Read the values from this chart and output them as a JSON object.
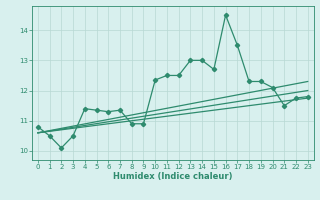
{
  "x": [
    0,
    1,
    2,
    3,
    4,
    5,
    6,
    7,
    8,
    9,
    10,
    11,
    12,
    13,
    14,
    15,
    16,
    17,
    18,
    19,
    20,
    21,
    22,
    23
  ],
  "y_main": [
    10.8,
    10.5,
    10.1,
    10.5,
    11.4,
    11.35,
    11.3,
    11.35,
    10.9,
    10.9,
    12.35,
    12.5,
    12.5,
    13.0,
    13.0,
    12.7,
    14.5,
    13.5,
    12.3,
    12.3,
    12.1,
    11.5,
    11.75,
    11.8
  ],
  "color": "#2e8b6e",
  "bg_color": "#d8f0ee",
  "grid_color": "#b8d8d4",
  "xlabel": "Humidex (Indice chaleur)",
  "ylim": [
    9.7,
    14.8
  ],
  "xlim": [
    -0.5,
    23.5
  ],
  "yticks": [
    10,
    11,
    12,
    13,
    14
  ],
  "xticks": [
    0,
    1,
    2,
    3,
    4,
    5,
    6,
    7,
    8,
    9,
    10,
    11,
    12,
    13,
    14,
    15,
    16,
    17,
    18,
    19,
    20,
    21,
    22,
    23
  ],
  "line1_start": 10.6,
  "line1_end": 11.75,
  "line2_start": 10.6,
  "line2_end": 12.0,
  "line3_start": 10.6,
  "line3_end": 12.3
}
